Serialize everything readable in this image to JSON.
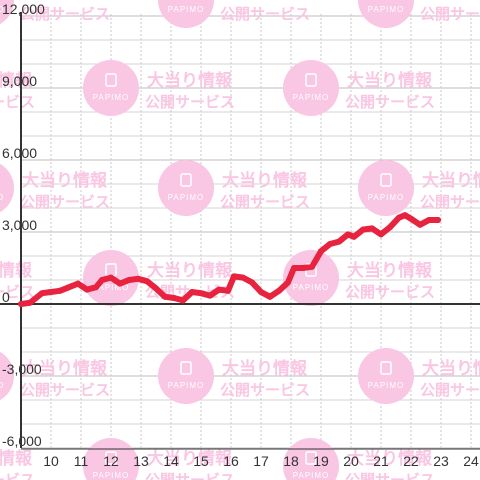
{
  "chart_data": {
    "type": "line",
    "title": "",
    "xlabel": "",
    "ylabel": "",
    "x_ticks": [
      "10",
      "11",
      "12",
      "13",
      "14",
      "15",
      "16",
      "17",
      "18",
      "19",
      "20",
      "21",
      "22",
      "23",
      "24"
    ],
    "y_ticks": [
      "12,000",
      "9,000",
      "6,000",
      "3,000",
      "0",
      "-3,000",
      "-6,000"
    ],
    "xlim": [
      9.0,
      24.5
    ],
    "ylim": [
      -6000,
      12000
    ],
    "grid": true,
    "legend": "none",
    "series": [
      {
        "color": "#e8233f",
        "x": [
          9.0,
          9.3,
          9.7,
          10.0,
          10.3,
          10.6,
          10.9,
          11.2,
          11.5,
          11.7,
          12.0,
          12.3,
          12.6,
          12.9,
          13.2,
          13.5,
          13.8,
          14.1,
          14.4,
          14.7,
          15.0,
          15.3,
          15.6,
          15.9,
          16.1,
          16.4,
          16.7,
          17.0,
          17.3,
          17.6,
          17.9,
          18.1,
          18.4,
          18.7,
          19.0,
          19.3,
          19.6,
          19.9,
          20.1,
          20.4,
          20.7,
          21.0,
          21.3,
          21.6,
          21.8,
          22.0,
          22.3,
          22.6,
          22.9
        ],
        "y": [
          0,
          50,
          450,
          500,
          550,
          700,
          850,
          600,
          700,
          1000,
          1100,
          850,
          1000,
          1050,
          950,
          650,
          300,
          250,
          150,
          500,
          450,
          350,
          600,
          550,
          1150,
          1100,
          900,
          500,
          300,
          550,
          900,
          1500,
          1500,
          1550,
          2200,
          2500,
          2600,
          2900,
          2800,
          3100,
          3150,
          2900,
          3200,
          3600,
          3700,
          3550,
          3300,
          3500,
          3500
        ]
      }
    ]
  },
  "watermark": {
    "line1": "大当り情報",
    "line2": "公開サービス",
    "badge": "PAPIMO",
    "color": "#f9c6e3"
  }
}
